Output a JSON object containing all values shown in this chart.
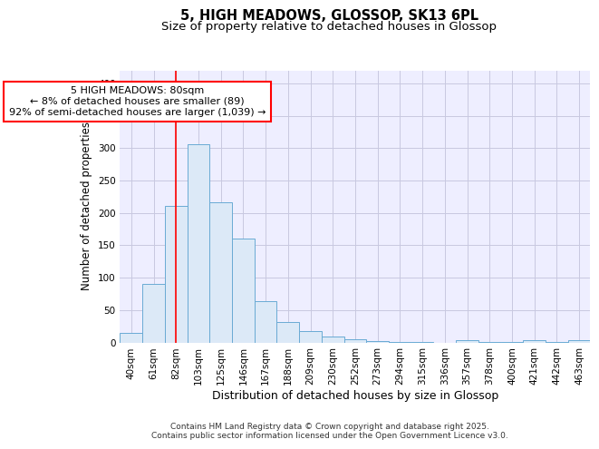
{
  "title_line1": "5, HIGH MEADOWS, GLOSSOP, SK13 6PL",
  "title_line2": "Size of property relative to detached houses in Glossop",
  "xlabel": "Distribution of detached houses by size in Glossop",
  "ylabel": "Number of detached properties",
  "bar_labels": [
    "40sqm",
    "61sqm",
    "82sqm",
    "103sqm",
    "125sqm",
    "146sqm",
    "167sqm",
    "188sqm",
    "209sqm",
    "230sqm",
    "252sqm",
    "273sqm",
    "294sqm",
    "315sqm",
    "336sqm",
    "357sqm",
    "378sqm",
    "400sqm",
    "421sqm",
    "442sqm",
    "463sqm"
  ],
  "bar_values": [
    15,
    91,
    211,
    306,
    216,
    160,
    64,
    31,
    17,
    9,
    5,
    2,
    1,
    1,
    0,
    4,
    1,
    1,
    3,
    1,
    3
  ],
  "bar_color": "#dce9f7",
  "bar_edge_color": "#6aaad4",
  "red_line_x": 2.0,
  "annotation_text": "5 HIGH MEADOWS: 80sqm\n← 8% of detached houses are smaller (89)\n92% of semi-detached houses are larger (1,039) →",
  "annotation_box_color": "white",
  "annotation_box_edge_color": "red",
  "ylim": [
    0,
    420
  ],
  "yticks": [
    0,
    50,
    100,
    150,
    200,
    250,
    300,
    350,
    400
  ],
  "grid_color": "#c8c8e0",
  "background_color": "#eeeeff",
  "footer_text": "Contains HM Land Registry data © Crown copyright and database right 2025.\nContains public sector information licensed under the Open Government Licence v3.0.",
  "title_fontsize": 10.5,
  "subtitle_fontsize": 9.5,
  "xlabel_fontsize": 9,
  "ylabel_fontsize": 8.5,
  "tick_fontsize": 7.5,
  "annot_fontsize": 8,
  "footer_fontsize": 6.5
}
